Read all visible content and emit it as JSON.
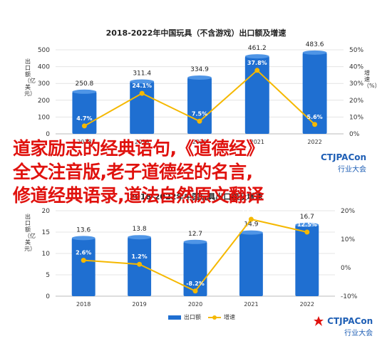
{
  "chart_data": [
    {
      "type": "bar",
      "title": "2018-2022年中国玩具（不含游戏）出口额及增速",
      "ylabel": "出口额（亿美元）",
      "y2label": "增速（%）",
      "categories": [
        "2018",
        "2019",
        "2020",
        "2021",
        "2022"
      ],
      "ylim": [
        0,
        500
      ],
      "yticks": [
        "0",
        "100",
        "200",
        "300",
        "400",
        "500"
      ],
      "y2lim": [
        0,
        50
      ],
      "y2ticks": [
        "0%",
        "10%",
        "20%",
        "30%",
        "40%",
        "50%"
      ],
      "series": [
        {
          "name": "出口额",
          "type": "bar",
          "values": [
            250.8,
            311.4,
            334.9,
            461.2,
            483.6
          ],
          "labels": [
            "250.8",
            "311.4",
            "334.9",
            "461.2",
            "483.6"
          ]
        },
        {
          "name": "增速",
          "type": "line",
          "values": [
            4.7,
            24.1,
            7.5,
            37.8,
            5.6
          ],
          "labels": [
            "4.7%",
            "24.1%",
            "7.5%",
            "37.8%",
            "5.6%"
          ]
        }
      ]
    },
    {
      "type": "bar",
      "title": "2018-2022年中国玩具出口额及增速",
      "ylabel": "出口额（亿美元）",
      "categories": [
        "2018",
        "2019",
        "2020",
        "2021",
        "2022"
      ],
      "ylim": [
        0,
        20
      ],
      "yticks": [
        "0",
        "5",
        "10",
        "15",
        "20"
      ],
      "y2lim": [
        -10,
        20
      ],
      "y2ticks": [
        "-10%",
        "0%",
        "10%",
        "20%"
      ],
      "series": [
        {
          "name": "出口额",
          "type": "bar",
          "values": [
            13.6,
            13.8,
            12.7,
            14.9,
            16.7
          ],
          "labels": [
            "13.6",
            "13.8",
            "12.7",
            "14.9",
            "16.7"
          ]
        },
        {
          "name": "增速",
          "type": "line",
          "values": [
            2.6,
            1.2,
            -8.2,
            17.0,
            12.5
          ],
          "labels": [
            "2.6%",
            "1.2%",
            "-8.2%",
            "17.0%",
            "12.5%"
          ]
        }
      ],
      "legend": [
        "出口额",
        "增速"
      ]
    }
  ],
  "overlay": {
    "lines": [
      "道家励志的经典语句,《道德经》",
      "全文注音版,老子道德经的名言,",
      "修道经典语录,道法自然原文翻译"
    ]
  },
  "logo": {
    "brand": "CTJPACon",
    "sub": "行业大会"
  },
  "colors": {
    "bar": "#1f6fd1",
    "line": "#f5b800",
    "overlay": "#e0120e",
    "grid": "#e4e4e4"
  }
}
